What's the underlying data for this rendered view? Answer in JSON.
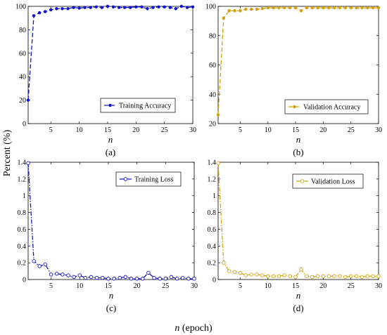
{
  "figure": {
    "shared_ylabel": "Percent (%)",
    "shared_xlabel_var": "n",
    "shared_xlabel_unit": " (epoch)"
  },
  "colors": {
    "training": "#1515c8",
    "validation": "#d4a20e"
  },
  "chart_data": [
    {
      "type": "line",
      "panel_label": "(a)",
      "xlabel": "n",
      "xlim": [
        1,
        30
      ],
      "ylim": [
        0,
        100
      ],
      "xticks": [
        5,
        10,
        15,
        20,
        25,
        30
      ],
      "yticks": [
        0,
        20,
        40,
        60,
        80,
        100
      ],
      "ytick_labels": [
        "0",
        "20",
        "40",
        "60",
        "80",
        "100"
      ],
      "legend_position": "lower-right",
      "series": [
        {
          "name": "Training Accuracy",
          "color": "#1515c8",
          "line_style": "dashed",
          "marker": "filled-circle",
          "x": [
            1,
            2,
            3,
            4,
            5,
            6,
            7,
            8,
            9,
            10,
            11,
            12,
            13,
            14,
            15,
            16,
            17,
            18,
            19,
            20,
            21,
            22,
            23,
            24,
            25,
            26,
            27,
            28,
            29,
            30
          ],
          "y": [
            20,
            92,
            94.5,
            95.5,
            97,
            98,
            98,
            98,
            99,
            98.5,
            99,
            99,
            99.5,
            99,
            100,
            99.5,
            99,
            99,
            99,
            99.5,
            99.5,
            98,
            99,
            99.5,
            99.5,
            99,
            98,
            100,
            99,
            99.5
          ]
        }
      ]
    },
    {
      "type": "line",
      "panel_label": "(b)",
      "xlabel": "n",
      "xlim": [
        1,
        30
      ],
      "ylim": [
        20,
        100
      ],
      "xticks": [
        5,
        10,
        15,
        20,
        25,
        30
      ],
      "yticks": [
        20,
        40,
        60,
        80,
        100
      ],
      "ytick_labels": [
        "20",
        "40",
        "60",
        "80",
        "100"
      ],
      "legend_position": "lower-right",
      "series": [
        {
          "name": "Validation Accuracy",
          "color": "#d4a20e",
          "line_style": "dashed",
          "marker": "filled-circle",
          "x": [
            1,
            2,
            3,
            4,
            5,
            6,
            7,
            8,
            9,
            10,
            11,
            12,
            13,
            14,
            15,
            16,
            17,
            18,
            19,
            20,
            21,
            22,
            23,
            24,
            25,
            26,
            27,
            28,
            29,
            30
          ],
          "y": [
            26,
            92,
            97,
            97,
            97,
            98,
            98,
            98,
            98.5,
            99,
            99,
            99,
            99,
            99,
            99,
            97,
            99,
            99,
            99,
            99,
            99,
            99,
            99,
            99,
            99,
            99,
            99,
            99,
            99,
            99
          ]
        }
      ]
    },
    {
      "type": "line",
      "panel_label": "(c)",
      "xlabel": "n",
      "xlim": [
        1,
        30
      ],
      "ylim": [
        0,
        1.4
      ],
      "xticks": [
        5,
        10,
        15,
        20,
        25,
        30
      ],
      "yticks": [
        0,
        0.2,
        0.4,
        0.6,
        0.8,
        1.0,
        1.2,
        1.4
      ],
      "ytick_labels": [
        "0",
        "0.2",
        "0.4",
        "0.6",
        "0.8",
        "1",
        "1.2",
        "1.4"
      ],
      "legend_position": "top-right",
      "series": [
        {
          "name": "Training Loss",
          "color": "#1515c8",
          "line_style": "dash-dot",
          "marker": "open-circle",
          "x": [
            1,
            2,
            3,
            4,
            5,
            6,
            7,
            8,
            9,
            10,
            11,
            12,
            13,
            14,
            15,
            16,
            17,
            18,
            19,
            20,
            21,
            22,
            23,
            24,
            25,
            26,
            27,
            28,
            29,
            30
          ],
          "y": [
            1.39,
            0.22,
            0.16,
            0.18,
            0.06,
            0.07,
            0.06,
            0.05,
            0.03,
            0.05,
            0.02,
            0.03,
            0.02,
            0.02,
            0.01,
            0.01,
            0.02,
            0.03,
            0.01,
            0.01,
            0.01,
            0.08,
            0.02,
            0.01,
            0.01,
            0.03,
            0.01,
            0.02,
            0.01,
            0.01
          ]
        }
      ]
    },
    {
      "type": "line",
      "panel_label": "(d)",
      "xlabel": "n",
      "xlim": [
        1,
        30
      ],
      "ylim": [
        0,
        1.4
      ],
      "xticks": [
        5,
        10,
        15,
        20,
        25,
        30
      ],
      "yticks": [
        0,
        0.2,
        0.4,
        0.6,
        0.8,
        1.0,
        1.2,
        1.4
      ],
      "ytick_labels": [
        "0",
        "0.2",
        "0.4",
        "0.6",
        "0.8",
        "1",
        "1.2",
        "1.4"
      ],
      "legend_position": "top-right",
      "series": [
        {
          "name": "Validation Loss",
          "color": "#d4a20e",
          "line_style": "dash-dot",
          "marker": "open-circle",
          "x": [
            1,
            2,
            3,
            4,
            5,
            6,
            7,
            8,
            9,
            10,
            11,
            12,
            13,
            14,
            15,
            16,
            17,
            18,
            19,
            20,
            21,
            22,
            23,
            24,
            25,
            26,
            27,
            28,
            29,
            30
          ],
          "y": [
            1.39,
            0.2,
            0.1,
            0.09,
            0.08,
            0.05,
            0.06,
            0.06,
            0.05,
            0.04,
            0.04,
            0.04,
            0.05,
            0.04,
            0.03,
            0.12,
            0.04,
            0.03,
            0.04,
            0.04,
            0.04,
            0.04,
            0.04,
            0.03,
            0.04,
            0.04,
            0.03,
            0.04,
            0.04,
            0.04
          ]
        }
      ]
    }
  ]
}
